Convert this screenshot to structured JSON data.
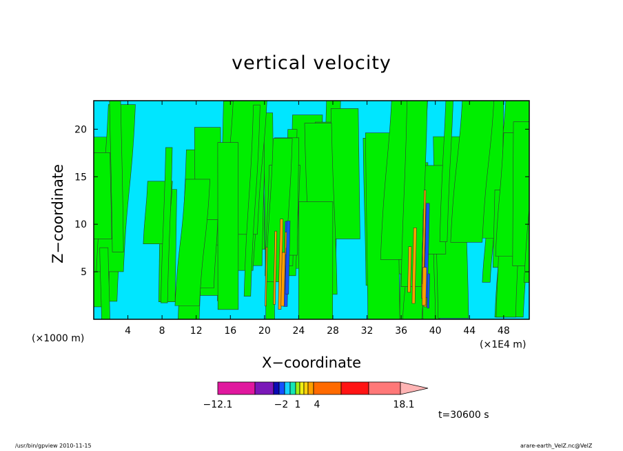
{
  "chart_data": {
    "type": "heatmap",
    "title": "vertical velocity",
    "xlabel": "X−coordinate",
    "ylabel": "Z−coordinate",
    "x_unit_left": "(×1000 m)",
    "x_unit_right": "(×1E4 m)",
    "xlim": [
      0,
      51
    ],
    "ylim": [
      0,
      23
    ],
    "x_ticks": [
      4,
      8,
      12,
      16,
      20,
      24,
      28,
      32,
      36,
      40,
      44,
      48
    ],
    "y_ticks": [
      5,
      10,
      15,
      20
    ],
    "colorbar": {
      "labels": [
        "−12.1",
        "−2",
        "1",
        "4",
        "18.1"
      ],
      "colors": [
        "#e0189e",
        "#7a18b8",
        "#0a0ab4",
        "#1450ff",
        "#14d2ff",
        "#14e6b4",
        "#a0f014",
        "#f0f014",
        "#ffd20a",
        "#ffa000",
        "#ff6a00",
        "#ff1414",
        "#ff7878",
        "#ffb4b4"
      ]
    },
    "field_colors": {
      "background_negative": "#00e6ff",
      "background_positive": "#00ee00",
      "strong_updraft": "#ffa000",
      "strong_downdraft": "#1450ff"
    },
    "time_label": "t=30600 s"
  },
  "footer": {
    "left": "/usr/bin/gpview   2010-11-15",
    "right": "arare-earth_VelZ.nc@VelZ"
  }
}
